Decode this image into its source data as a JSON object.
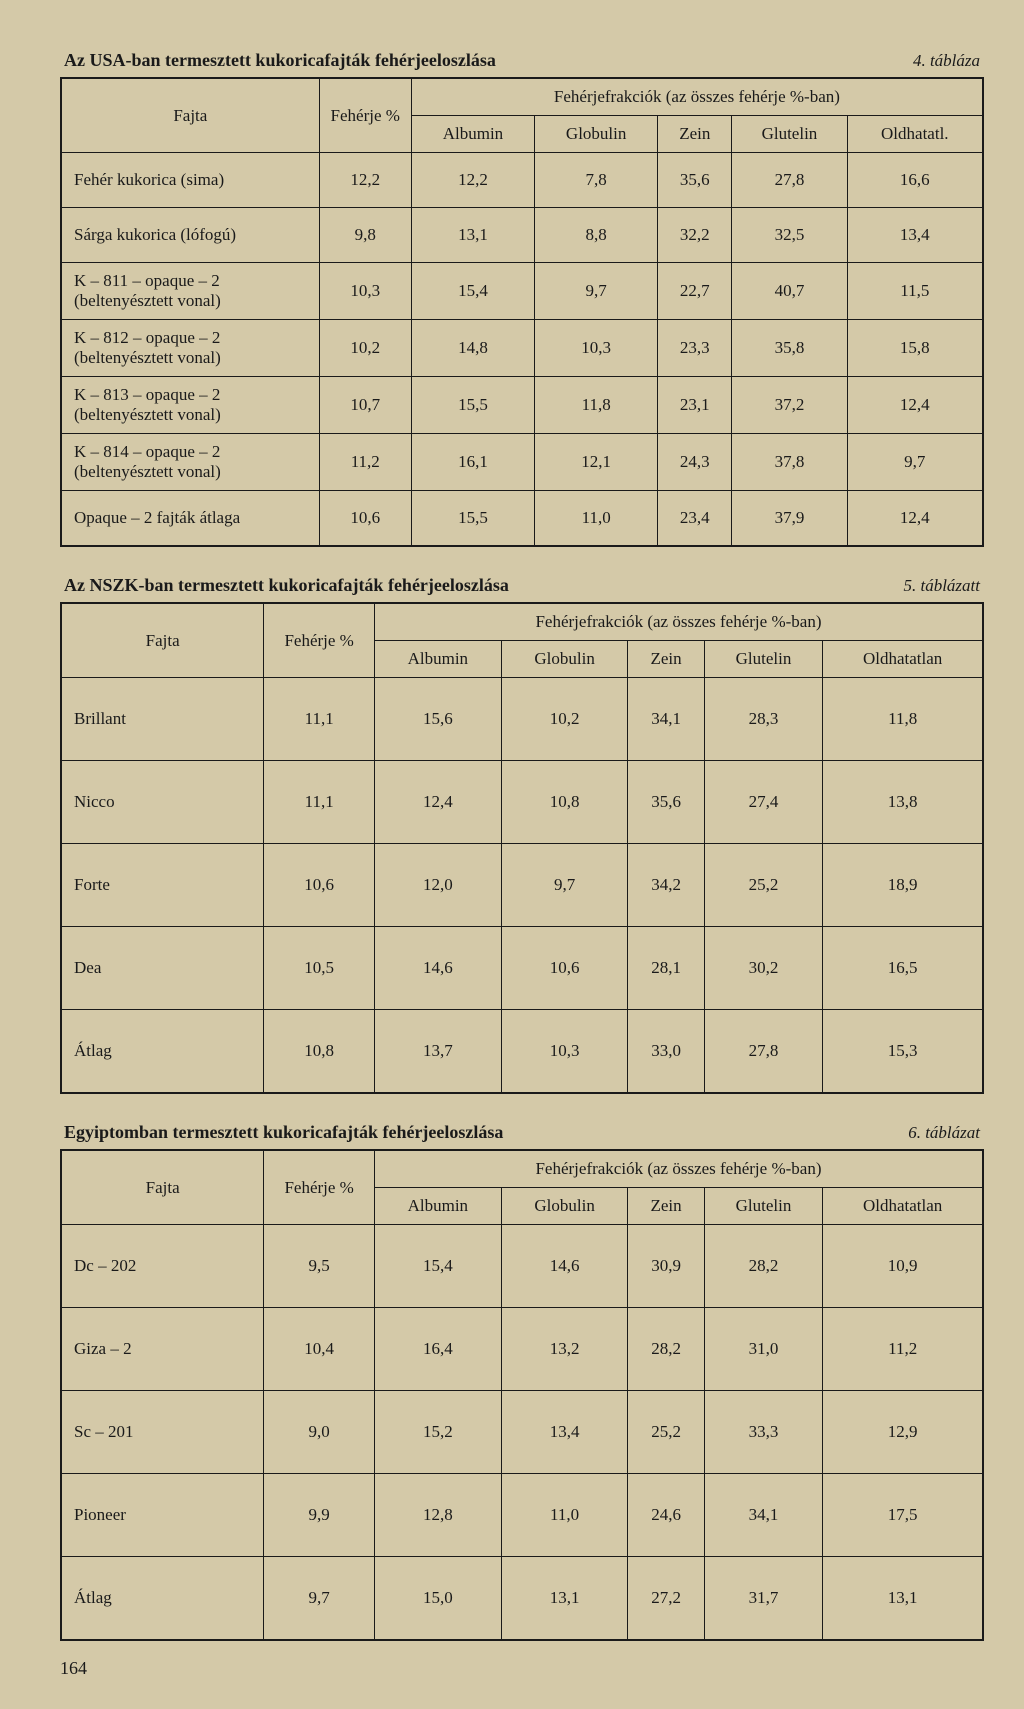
{
  "page_number": "164",
  "tables": [
    {
      "title": "Az USA-ban termesztett kukoricafajták fehérjeeloszlása",
      "table_num": "4. tábláza",
      "h_fajta": "Fajta",
      "h_feherje": "Fehérje %",
      "h_frakciok": "Fehérjefrakciók (az összes fehérje %-ban)",
      "h_cols": [
        "Albumin",
        "Globulin",
        "Zein",
        "Glutelin",
        "Oldhatatl."
      ],
      "rows": [
        {
          "name": "Fehér kukorica (sima)",
          "vals": [
            "12,2",
            "12,2",
            "7,8",
            "35,6",
            "27,8",
            "16,6"
          ]
        },
        {
          "name": "Sárga kukorica (lófogú)",
          "vals": [
            "9,8",
            "13,1",
            "8,8",
            "32,2",
            "32,5",
            "13,4"
          ]
        },
        {
          "name": "K – 811 – opaque – 2\n(beltenyésztett vonal)",
          "vals": [
            "10,3",
            "15,4",
            "9,7",
            "22,7",
            "40,7",
            "11,5"
          ]
        },
        {
          "name": "K – 812 – opaque – 2\n(beltenyésztett vonal)",
          "vals": [
            "10,2",
            "14,8",
            "10,3",
            "23,3",
            "35,8",
            "15,8"
          ]
        },
        {
          "name": "K – 813 – opaque – 2\n(beltenyésztett vonal)",
          "vals": [
            "10,7",
            "15,5",
            "11,8",
            "23,1",
            "37,2",
            "12,4"
          ]
        },
        {
          "name": "K – 814 – opaque – 2\n(beltenyésztett vonal)",
          "vals": [
            "11,2",
            "16,1",
            "12,1",
            "24,3",
            "37,8",
            "9,7"
          ]
        },
        {
          "name": "Opaque – 2 fajták átlaga",
          "vals": [
            "10,6",
            "15,5",
            "11,0",
            "23,4",
            "37,9",
            "12,4"
          ]
        }
      ]
    },
    {
      "title": "Az NSZK-ban termesztett kukoricafajták fehérjeeloszlása",
      "table_num": "5. táblázatt",
      "h_fajta": "Fajta",
      "h_feherje": "Fehérje %",
      "h_frakciok": "Fehérjefrakciók (az összes fehérje %-ban)",
      "h_cols": [
        "Albumin",
        "Globulin",
        "Zein",
        "Glutelin",
        "Oldhatatlan"
      ],
      "rows": [
        {
          "name": "Brillant",
          "vals": [
            "11,1",
            "15,6",
            "10,2",
            "34,1",
            "28,3",
            "11,8"
          ]
        },
        {
          "name": "Nicco",
          "vals": [
            "11,1",
            "12,4",
            "10,8",
            "35,6",
            "27,4",
            "13,8"
          ]
        },
        {
          "name": "Forte",
          "vals": [
            "10,6",
            "12,0",
            "9,7",
            "34,2",
            "25,2",
            "18,9"
          ]
        },
        {
          "name": "Dea",
          "vals": [
            "10,5",
            "14,6",
            "10,6",
            "28,1",
            "30,2",
            "16,5"
          ]
        },
        {
          "name": "Átlag",
          "vals": [
            "10,8",
            "13,7",
            "10,3",
            "33,0",
            "27,8",
            "15,3"
          ]
        }
      ]
    },
    {
      "title": "Egyiptomban termesztett kukoricafajták fehérjeeloszlása",
      "table_num": "6. táblázat",
      "h_fajta": "Fajta",
      "h_feherje": "Fehérje %",
      "h_frakciok": "Fehérjefrakciók (az összes fehérje %-ban)",
      "h_cols": [
        "Albumin",
        "Globulin",
        "Zein",
        "Glutelin",
        "Oldhatatlan"
      ],
      "rows": [
        {
          "name": "Dc – 202",
          "vals": [
            "9,5",
            "15,4",
            "14,6",
            "30,9",
            "28,2",
            "10,9"
          ]
        },
        {
          "name": "Giza – 2",
          "vals": [
            "10,4",
            "16,4",
            "13,2",
            "28,2",
            "31,0",
            "11,2"
          ]
        },
        {
          "name": "Sc – 201",
          "vals": [
            "9,0",
            "15,2",
            "13,4",
            "25,2",
            "33,3",
            "12,9"
          ]
        },
        {
          "name": "Pioneer",
          "vals": [
            "9,9",
            "12,8",
            "11,0",
            "24,6",
            "34,1",
            "17,5"
          ]
        },
        {
          "name": "Átlag",
          "vals": [
            "9,7",
            "15,0",
            "13,1",
            "27,2",
            "31,7",
            "13,1"
          ]
        }
      ]
    }
  ]
}
